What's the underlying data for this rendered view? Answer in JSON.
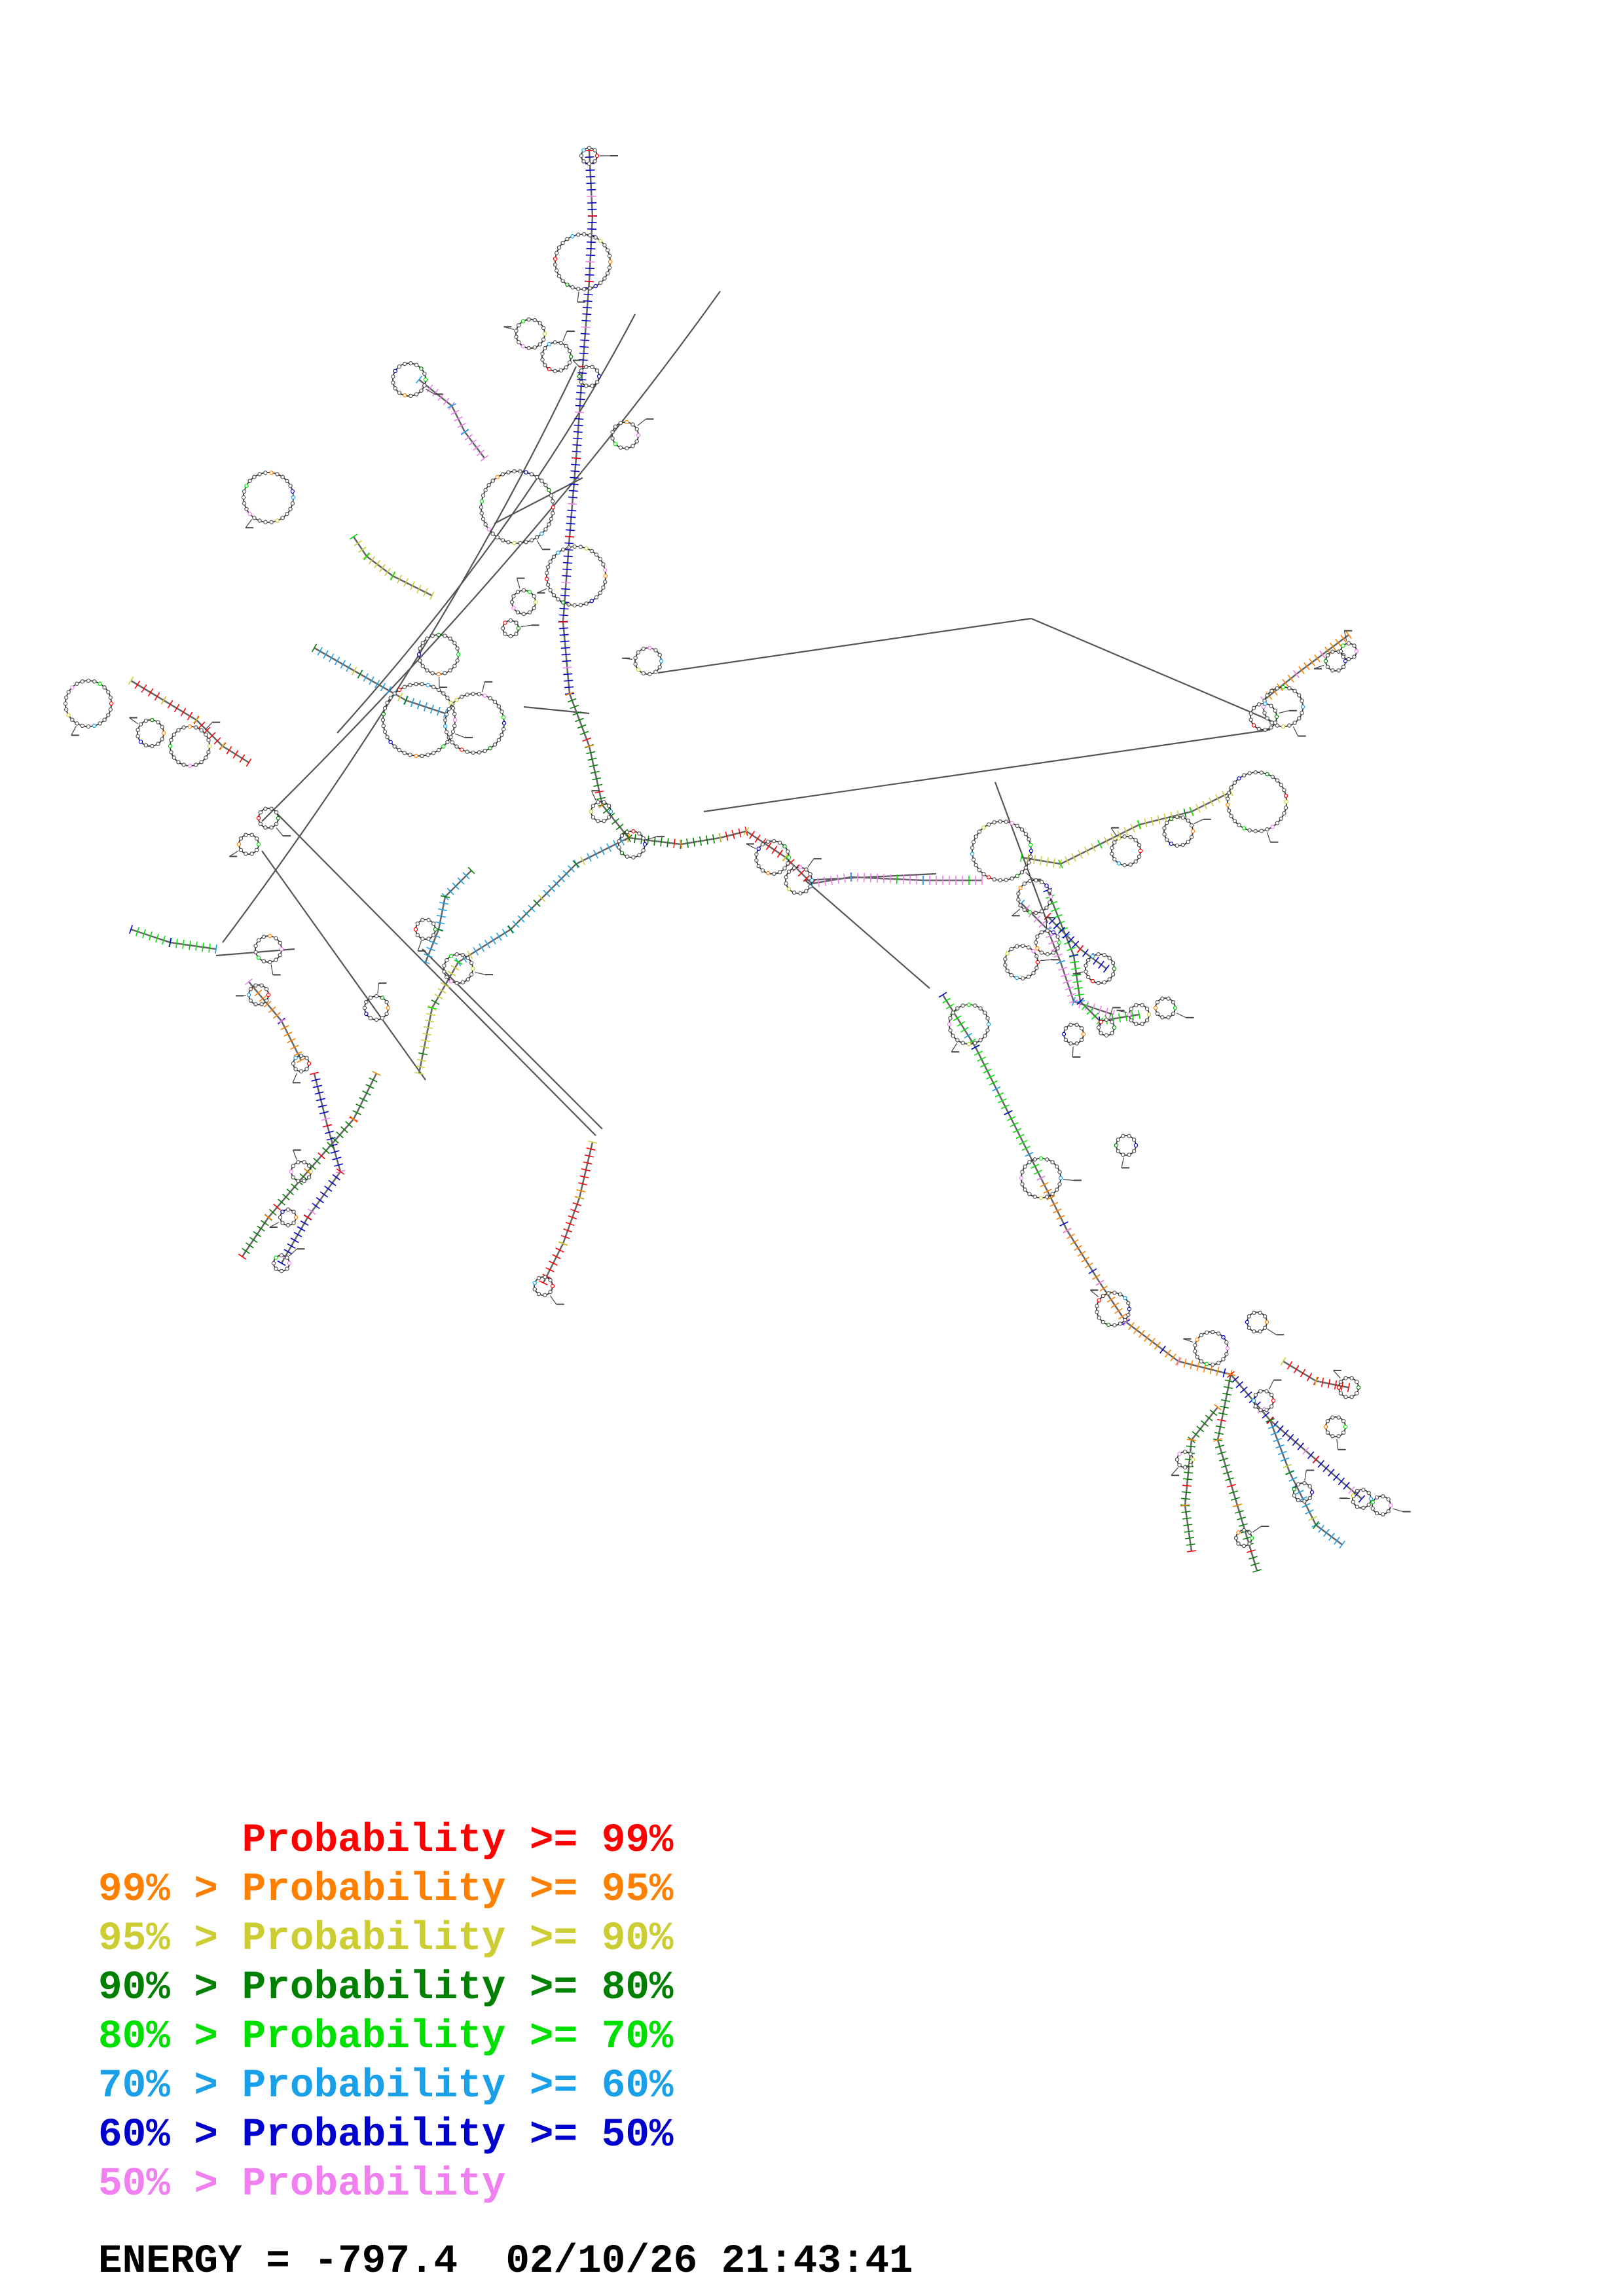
{
  "legend": [
    {
      "text": "      Probability >= 99%",
      "color": "#ff0000"
    },
    {
      "text": "99% > Probability >= 95%",
      "color": "#ff8000"
    },
    {
      "text": "95% > Probability >= 90%",
      "color": "#cccc33"
    },
    {
      "text": "90% > Probability >= 80%",
      "color": "#008000"
    },
    {
      "text": "80% > Probability >= 70%",
      "color": "#00e000"
    },
    {
      "text": "70% > Probability >= 60%",
      "color": "#1aa0e8"
    },
    {
      "text": "60% > Probability >= 50%",
      "color": "#0000cc"
    },
    {
      "text": "50% > Probability",
      "color": "#f080f0"
    }
  ],
  "footer": {
    "energy_label": "ENERGY =",
    "energy_value": "-797.4",
    "date": "02/10/26",
    "time": "21:43:41"
  },
  "colors": {
    "backbone": "#555555",
    "base_outline": "#444444"
  }
}
